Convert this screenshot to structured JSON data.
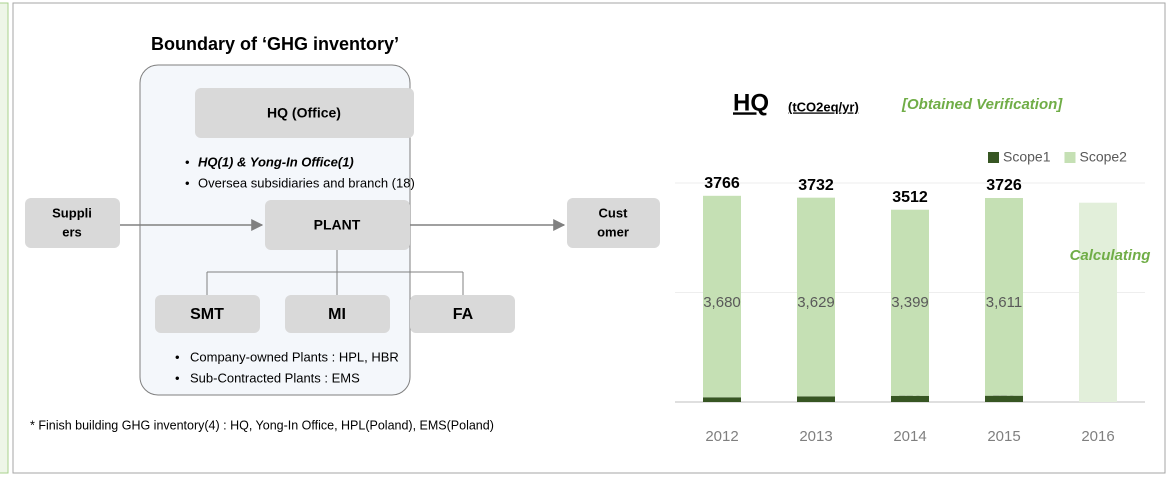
{
  "diagram": {
    "title": "Boundary of ‘GHG inventory’",
    "hq_box": "HQ (Office)",
    "hq_bullets": [
      "HQ(1) & Yong-In Office(1)",
      "Oversea subsidiaries and branch (18)"
    ],
    "suppliers": [
      "Suppli",
      "ers"
    ],
    "plant": "PLANT",
    "customer": [
      "Cust",
      "omer"
    ],
    "units": [
      "SMT",
      "MI",
      "FA"
    ],
    "plant_bullets": [
      "Company-owned Plants : HPL, HBR",
      "Sub-Contracted Plants : EMS"
    ],
    "footnote": "* Finish building GHG inventory(4) : HQ, Yong-In Office, HPL(Poland), EMS(Poland)"
  },
  "chart_data": {
    "type": "stacked_bar",
    "title": "HQ",
    "subtitle": "(tCO2eq/yr)",
    "annotation": "[Obtained Verification]",
    "categories": [
      "2012",
      "2013",
      "2014",
      "2015",
      "2016"
    ],
    "series": [
      {
        "name": "Scope1",
        "color": "#375623",
        "values": [
          86,
          103,
          113,
          115,
          null
        ]
      },
      {
        "name": "Scope2",
        "color": "#c5e0b4",
        "values": [
          3680,
          3629,
          3399,
          3611,
          null
        ],
        "value_labels": [
          "3,680",
          "3,629",
          "3,399",
          "3,611",
          null
        ]
      }
    ],
    "totals": [
      3766,
      3732,
      3512,
      3726,
      null
    ],
    "pending": {
      "label": "Calculating",
      "category": 4,
      "value": 3640,
      "color": "#e2efda"
    },
    "ylim": [
      0,
      4000
    ],
    "yticks": [
      0,
      2000,
      4000
    ],
    "grid": true,
    "legend": "top-right"
  }
}
